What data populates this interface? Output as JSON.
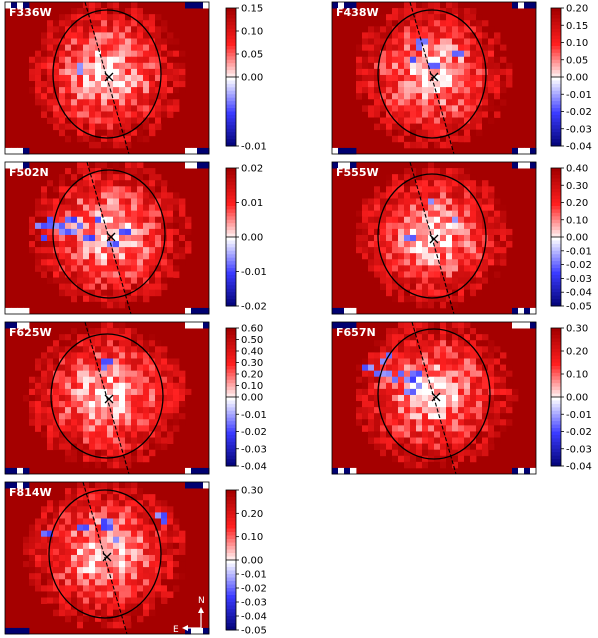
{
  "figure": {
    "colors": {
      "positive_max": "#a50000",
      "positive_mid": "#ff2020",
      "neutral": "#ffffff",
      "negative_mid": "#3b3bff",
      "negative_max": "#000070",
      "overlay_lines": "#000000"
    },
    "compass": {
      "north": "N",
      "east": "E"
    }
  },
  "chart_data": [
    {
      "type": "heatmap",
      "panel_label": "F336W",
      "colorbar_ticks": [
        "0.15",
        "0.10",
        "0.05",
        "0.00",
        "-0.01"
      ],
      "overlay": [
        "ellipse",
        "dashed-line",
        "x-marker"
      ]
    },
    {
      "type": "heatmap",
      "panel_label": "F438W",
      "colorbar_ticks": [
        "0.20",
        "0.15",
        "0.10",
        "0.05",
        "0.00",
        "-0.01",
        "-0.02",
        "-0.03",
        "-0.04"
      ],
      "overlay": [
        "ellipse",
        "dashed-line",
        "x-marker"
      ]
    },
    {
      "type": "heatmap",
      "panel_label": "F502N",
      "colorbar_ticks": [
        "0.02",
        "0.01",
        "0.00",
        "-0.01",
        "-0.02"
      ],
      "overlay": [
        "ellipse",
        "dashed-line",
        "x-marker"
      ]
    },
    {
      "type": "heatmap",
      "panel_label": "F555W",
      "colorbar_ticks": [
        "0.40",
        "0.30",
        "0.20",
        "0.10",
        "0.00",
        "-0.01",
        "-0.02",
        "-0.03",
        "-0.04",
        "-0.05"
      ],
      "overlay": [
        "ellipse",
        "dashed-line",
        "x-marker"
      ]
    },
    {
      "type": "heatmap",
      "panel_label": "F625W",
      "colorbar_ticks": [
        "0.60",
        "0.50",
        "0.40",
        "0.30",
        "0.20",
        "0.10",
        "0.00",
        "-0.01",
        "-0.02",
        "-0.03",
        "-0.04"
      ],
      "overlay": [
        "ellipse",
        "dashed-line",
        "x-marker"
      ]
    },
    {
      "type": "heatmap",
      "panel_label": "F657N",
      "colorbar_ticks": [
        "0.30",
        "0.20",
        "0.10",
        "0.00",
        "-0.01",
        "-0.02",
        "-0.03",
        "-0.04"
      ],
      "overlay": [
        "ellipse",
        "dashed-line",
        "x-marker"
      ]
    },
    {
      "type": "heatmap",
      "panel_label": "F814W",
      "colorbar_ticks": [
        "0.30",
        "0.20",
        "0.10",
        "0.00",
        "-0.01",
        "-0.02",
        "-0.03",
        "-0.04",
        "-0.05"
      ],
      "overlay": [
        "ellipse",
        "dashed-line",
        "x-marker"
      ]
    }
  ]
}
